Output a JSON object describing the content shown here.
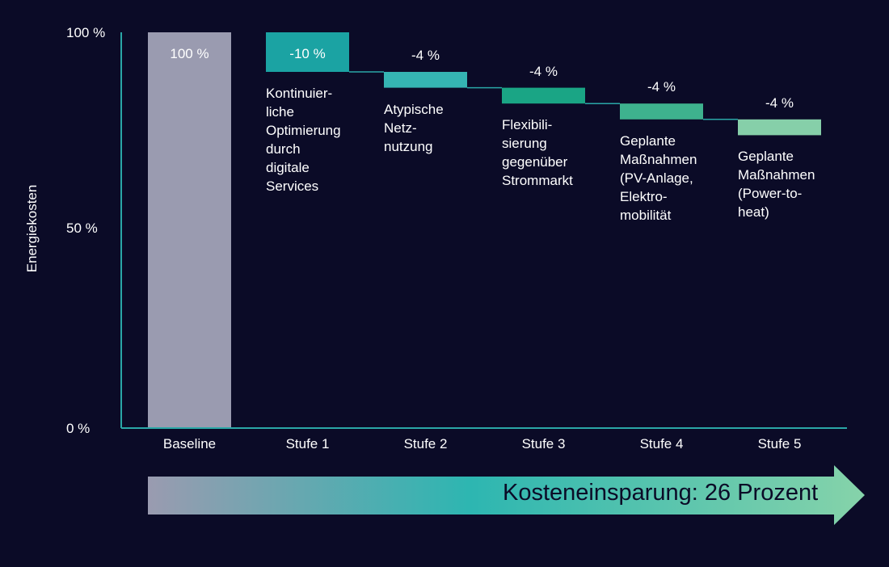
{
  "chart_data": {
    "type": "waterfall",
    "ylabel": "Energiekosten",
    "yticks": [
      "100 %",
      "50 %",
      "0 %"
    ],
    "ylim": [
      0,
      100
    ],
    "categories": [
      "Baseline",
      "Stufe 1",
      "Stufe 2",
      "Stufe 3",
      "Stufe 4",
      "Stufe 5"
    ],
    "values": [
      100,
      -10,
      -4,
      -4,
      -4,
      -4
    ],
    "value_labels": [
      "100 %",
      "-10 %",
      "-4 %",
      "-4 %",
      "-4 %",
      "-4 %"
    ],
    "descriptions": [
      "",
      "Kontinuier-\nliche\nOptimierung\ndurch\ndigitale\nServices",
      "Atypische\nNetz-\nnutzung",
      "Flexibili-\nsierung\ngegenüber\nStrommarkt",
      "Geplante\nMaßnahmen\n(PV-Anlage,\nElektro-\nmobilität",
      "Geplante\nMaßnahmen\n(Power-to-\nheat)"
    ],
    "colors": [
      "#9a9bb0",
      "#1ba3a3",
      "#35b5b3",
      "#1aa585",
      "#3eb28e",
      "#86cfa9"
    ],
    "grid": false,
    "arrow_label": "Kosteneinsparung: 26 Prozent"
  }
}
